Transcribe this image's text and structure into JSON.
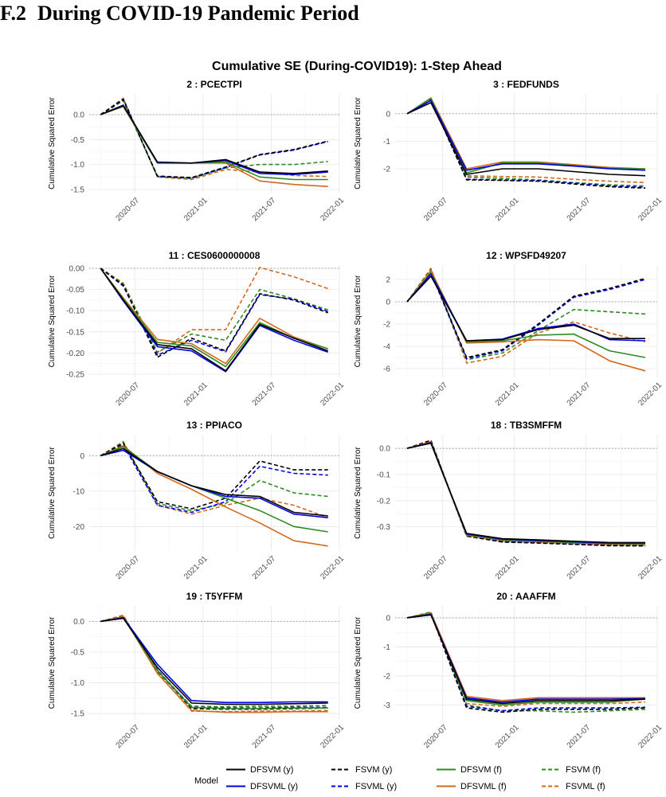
{
  "heading": {
    "number": "F.2",
    "text": "During COVID-19 Pandemic Period"
  },
  "chart_data": {
    "type": "line",
    "title": "Cumulative SE (During-COVID19): 1-Step Ahead",
    "ylabel": "Cumulative Squared Error",
    "x": [
      "2020-04",
      "2020-06",
      "2020-09",
      "2020-12",
      "2021-03",
      "2021-06",
      "2021-09",
      "2021-12"
    ],
    "x_tick_labels": [
      "2020-07",
      "2021-01",
      "2021-07",
      "2022-01"
    ],
    "x_tick_positions": [
      "2020-07",
      "2021-01",
      "2021-07",
      "2022-01"
    ],
    "reference_line": 0,
    "legend": {
      "title": "Model",
      "placement": "bottom",
      "entries": [
        {
          "name": "DFSVM (y)",
          "color": "#000000",
          "dash": "solid"
        },
        {
          "name": "DFSVML (y)",
          "color": "#0000e6",
          "dash": "solid"
        },
        {
          "name": "FSVM (y)",
          "color": "#000000",
          "dash": "dashed"
        },
        {
          "name": "FSVML (y)",
          "color": "#0000e6",
          "dash": "dashed"
        },
        {
          "name": "DFSVM (f)",
          "color": "#2e8b22",
          "dash": "solid"
        },
        {
          "name": "DFSVML (f)",
          "color": "#d2691e",
          "dash": "solid"
        },
        {
          "name": "FSVM (f)",
          "color": "#2e8b22",
          "dash": "dashed"
        },
        {
          "name": "FSVML (f)",
          "color": "#d2691e",
          "dash": "dashed"
        }
      ]
    },
    "panels": [
      {
        "title": "2 : PCECTPI",
        "ylim": [
          -1.5,
          0.35
        ],
        "yticks": [
          0,
          -0.5,
          -1.0,
          -1.5
        ],
        "ytick_labels": [
          "0.0",
          "-0.5",
          "-1.0",
          "-1.5"
        ],
        "series": {
          "DFSVM (y)": [
            0,
            0.18,
            -0.95,
            -0.97,
            -0.9,
            -1.15,
            -1.18,
            -1.13
          ],
          "DFSVML (y)": [
            0,
            0.19,
            -0.96,
            -0.97,
            -0.92,
            -1.18,
            -1.2,
            -1.15
          ],
          "FSVM (y)": [
            0,
            0.3,
            -1.23,
            -1.26,
            -1.05,
            -0.8,
            -0.7,
            -0.53
          ],
          "FSVML (y)": [
            0,
            0.31,
            -1.24,
            -1.27,
            -1.06,
            -0.81,
            -0.71,
            -0.54
          ],
          "DFSVM (f)": [
            0,
            0.17,
            -0.97,
            -0.97,
            -0.95,
            -1.25,
            -1.3,
            -1.3
          ],
          "DFSVML (f)": [
            0,
            0.16,
            -0.97,
            -0.97,
            -0.97,
            -1.33,
            -1.4,
            -1.44
          ],
          "FSVM (f)": [
            0,
            0.28,
            -1.24,
            -1.28,
            -1.07,
            -1.0,
            -1.0,
            -0.94
          ],
          "FSVML (f)": [
            0,
            0.33,
            -1.25,
            -1.3,
            -1.1,
            -1.15,
            -1.22,
            -1.24
          ]
        }
      },
      {
        "title": "3 : FEDFUNDS",
        "ylim": [
          -2.75,
          0.6
        ],
        "yticks": [
          0,
          -1,
          -2
        ],
        "ytick_labels": [
          "0",
          "-1",
          "-2"
        ],
        "series": {
          "DFSVM (y)": [
            0,
            0.4,
            -2.2,
            -2.0,
            -2.0,
            -2.1,
            -2.2,
            -2.25
          ],
          "DFSVML (y)": [
            0,
            0.48,
            -2.05,
            -1.82,
            -1.82,
            -1.9,
            -2.0,
            -2.05
          ],
          "FSVM (y)": [
            0,
            0.52,
            -2.4,
            -2.42,
            -2.45,
            -2.55,
            -2.65,
            -2.7
          ],
          "FSVML (y)": [
            0,
            0.5,
            -2.38,
            -2.4,
            -2.43,
            -2.52,
            -2.62,
            -2.67
          ],
          "DFSVM (f)": [
            0,
            0.55,
            -2.15,
            -1.78,
            -1.78,
            -1.88,
            -1.98,
            -2.0
          ],
          "DFSVML (f)": [
            0,
            0.57,
            -2.0,
            -1.75,
            -1.75,
            -1.85,
            -1.95,
            -2.0
          ],
          "FSVM (f)": [
            0,
            0.53,
            -2.3,
            -2.35,
            -2.4,
            -2.5,
            -2.58,
            -2.62
          ],
          "FSVML (f)": [
            0,
            0.56,
            -2.25,
            -2.28,
            -2.3,
            -2.38,
            -2.45,
            -2.5
          ]
        }
      },
      {
        "title": "11 : CES0600000008",
        "ylim": [
          -0.25,
          0.0
        ],
        "yticks": [
          0,
          -0.05,
          -0.1,
          -0.15,
          -0.2,
          -0.25
        ],
        "ytick_labels": [
          "0.00",
          "-0.05",
          "-0.10",
          "-0.15",
          "-0.20",
          "-0.25"
        ],
        "series": {
          "DFSVM (y)": [
            0,
            -0.075,
            -0.18,
            -0.19,
            -0.242,
            -0.132,
            -0.165,
            -0.195
          ],
          "DFSVML (y)": [
            0,
            -0.077,
            -0.185,
            -0.195,
            -0.244,
            -0.135,
            -0.17,
            -0.198
          ],
          "FSVM (y)": [
            0,
            -0.04,
            -0.21,
            -0.165,
            -0.195,
            -0.06,
            -0.075,
            -0.105
          ],
          "FSVML (y)": [
            0,
            -0.042,
            -0.205,
            -0.17,
            -0.197,
            -0.062,
            -0.073,
            -0.102
          ],
          "DFSVM (f)": [
            0,
            -0.072,
            -0.175,
            -0.183,
            -0.232,
            -0.128,
            -0.165,
            -0.19
          ],
          "DFSVML (f)": [
            0,
            -0.07,
            -0.168,
            -0.178,
            -0.225,
            -0.118,
            -0.162,
            -0.19
          ],
          "FSVM (f)": [
            0,
            -0.037,
            -0.198,
            -0.155,
            -0.17,
            -0.05,
            -0.072,
            -0.098
          ],
          "FSVML (f)": [
            0,
            -0.035,
            -0.2,
            -0.145,
            -0.145,
            0.002,
            -0.02,
            -0.048
          ]
        }
      },
      {
        "title": "12 : WPSFD49207",
        "ylim": [
          -6.5,
          3.0
        ],
        "yticks": [
          2,
          0,
          -2,
          -4,
          -6
        ],
        "ytick_labels": [
          "2",
          "0",
          "-2",
          "-4",
          "-6"
        ],
        "series": {
          "DFSVM (y)": [
            0,
            2.3,
            -3.5,
            -3.4,
            -2.5,
            -2.1,
            -3.3,
            -3.3
          ],
          "DFSVML (y)": [
            0,
            2.5,
            -3.5,
            -3.35,
            -2.4,
            -2.0,
            -3.4,
            -3.5
          ],
          "FSVM (y)": [
            0,
            2.7,
            -5.0,
            -4.3,
            -2.0,
            0.5,
            1.2,
            2.1
          ],
          "FSVML (y)": [
            0,
            2.6,
            -5.1,
            -4.4,
            -2.1,
            0.4,
            1.1,
            2.0
          ],
          "DFSVM (f)": [
            0,
            2.6,
            -3.6,
            -3.5,
            -3.0,
            -2.9,
            -4.4,
            -5.0
          ],
          "DFSVML (f)": [
            0,
            2.8,
            -3.7,
            -3.6,
            -3.4,
            -3.5,
            -5.3,
            -6.2
          ],
          "FSVM (f)": [
            0,
            2.9,
            -5.2,
            -4.6,
            -2.6,
            -0.7,
            -0.9,
            -1.1
          ],
          "FSVML (f)": [
            0,
            3.0,
            -5.5,
            -4.9,
            -2.8,
            -1.8,
            -2.8,
            -3.6
          ]
        }
      },
      {
        "title": "13 : PPIACO",
        "ylim": [
          -26,
          5
        ],
        "yticks": [
          0,
          -10,
          -20
        ],
        "ytick_labels": [
          "0",
          "-10",
          "-20"
        ],
        "series": {
          "DFSVM (y)": [
            0,
            2.0,
            -4.5,
            -8.5,
            -11.0,
            -11.5,
            -16.0,
            -17.0
          ],
          "DFSVML (y)": [
            0,
            1.5,
            -4.5,
            -8.5,
            -11.5,
            -12.0,
            -16.5,
            -17.5
          ],
          "FSVM (y)": [
            0,
            3.5,
            -13.0,
            -15.0,
            -12.0,
            -1.5,
            -4.0,
            -4.0
          ],
          "FSVML (y)": [
            0,
            3.0,
            -14.0,
            -16.0,
            -13.0,
            -3.0,
            -5.0,
            -5.5
          ],
          "DFSVM (f)": [
            0,
            2.5,
            -4.5,
            -8.5,
            -12.0,
            -15.5,
            -20.0,
            -21.5
          ],
          "DFSVML (f)": [
            0,
            2.8,
            -5.0,
            -9.5,
            -14.5,
            -19.0,
            -24.0,
            -25.5
          ],
          "FSVM (f)": [
            0,
            3.8,
            -13.5,
            -15.5,
            -13.5,
            -7.0,
            -10.5,
            -11.5
          ],
          "FSVML (f)": [
            0,
            4.0,
            -14.0,
            -16.5,
            -14.0,
            -12.0,
            -14.0,
            -17.5
          ]
        }
      },
      {
        "title": "18 : TB3SMFFM",
        "ylim": [
          -0.38,
          0.04
        ],
        "yticks": [
          0,
          -0.1,
          -0.2,
          -0.3
        ],
        "ytick_labels": [
          "0.0",
          "-0.1",
          "-0.2",
          "-0.3"
        ],
        "series": {
          "DFSVM (y)": [
            0,
            0.02,
            -0.325,
            -0.345,
            -0.35,
            -0.355,
            -0.36,
            -0.36
          ],
          "DFSVML (y)": [
            0,
            0.022,
            -0.327,
            -0.347,
            -0.352,
            -0.357,
            -0.362,
            -0.362
          ],
          "FSVM (y)": [
            0,
            0.03,
            -0.335,
            -0.358,
            -0.362,
            -0.367,
            -0.372,
            -0.373
          ],
          "FSVML (y)": [
            0,
            0.028,
            -0.333,
            -0.356,
            -0.36,
            -0.365,
            -0.37,
            -0.371
          ],
          "DFSVM (f)": [
            0,
            0.02,
            -0.33,
            -0.35,
            -0.355,
            -0.36,
            -0.364,
            -0.365
          ],
          "DFSVML (f)": [
            0,
            0.025,
            -0.332,
            -0.352,
            -0.357,
            -0.362,
            -0.366,
            -0.367
          ],
          "FSVM (f)": [
            0,
            0.028,
            -0.336,
            -0.357,
            -0.361,
            -0.366,
            -0.371,
            -0.372
          ],
          "FSVML (f)": [
            0,
            0.032,
            -0.334,
            -0.355,
            -0.359,
            -0.364,
            -0.369,
            -0.37
          ]
        }
      },
      {
        "title": "19 : T5YFFM",
        "ylim": [
          -1.55,
          0.2
        ],
        "yticks": [
          0,
          -0.5,
          -1.0,
          -1.5
        ],
        "ytick_labels": [
          "0.0",
          "-0.5",
          "-1.0",
          "-1.5"
        ],
        "series": {
          "DFSVM (y)": [
            0,
            0.05,
            -0.75,
            -1.33,
            -1.35,
            -1.35,
            -1.34,
            -1.33
          ],
          "DFSVML (y)": [
            0,
            0.06,
            -0.7,
            -1.29,
            -1.32,
            -1.32,
            -1.31,
            -1.31
          ],
          "FSVM (y)": [
            0,
            0.08,
            -0.8,
            -1.42,
            -1.43,
            -1.43,
            -1.42,
            -1.41
          ],
          "FSVML (y)": [
            0,
            0.07,
            -0.79,
            -1.4,
            -1.41,
            -1.41,
            -1.4,
            -1.4
          ],
          "DFSVM (f)": [
            0,
            0.06,
            -0.8,
            -1.4,
            -1.42,
            -1.42,
            -1.41,
            -1.41
          ],
          "DFSVML (f)": [
            0,
            0.08,
            -0.85,
            -1.45,
            -1.48,
            -1.48,
            -1.47,
            -1.47
          ],
          "FSVM (f)": [
            0,
            0.09,
            -0.82,
            -1.38,
            -1.39,
            -1.38,
            -1.38,
            -1.37
          ],
          "FSVML (f)": [
            0,
            0.1,
            -0.84,
            -1.46,
            -1.47,
            -1.46,
            -1.46,
            -1.45
          ]
        }
      },
      {
        "title": "20 : AAAFFM",
        "ylim": [
          -3.4,
          0.3
        ],
        "yticks": [
          0,
          -1,
          -2,
          -3
        ],
        "ytick_labels": [
          "0",
          "-1",
          "-2",
          "-3"
        ],
        "series": {
          "DFSVM (y)": [
            0,
            0.1,
            -2.8,
            -2.95,
            -2.85,
            -2.85,
            -2.85,
            -2.8
          ],
          "DFSVML (y)": [
            0,
            0.12,
            -2.75,
            -2.9,
            -2.8,
            -2.8,
            -2.8,
            -2.78
          ],
          "FSVM (y)": [
            0,
            0.15,
            -3.1,
            -3.25,
            -3.15,
            -3.15,
            -3.15,
            -3.1
          ],
          "FSVML (y)": [
            0,
            0.14,
            -3.05,
            -3.2,
            -3.1,
            -3.1,
            -3.1,
            -3.08
          ],
          "DFSVM (f)": [
            0,
            0.15,
            -2.85,
            -3.0,
            -2.9,
            -2.9,
            -2.9,
            -2.8
          ],
          "DFSVML (f)": [
            0,
            0.18,
            -2.7,
            -2.85,
            -2.75,
            -2.75,
            -2.75,
            -2.75
          ],
          "FSVM (f)": [
            0,
            0.2,
            -3.0,
            -3.2,
            -3.2,
            -3.25,
            -3.2,
            -3.15
          ],
          "FSVML (f)": [
            0,
            0.17,
            -2.95,
            -3.05,
            -2.95,
            -2.95,
            -2.95,
            -2.9
          ]
        }
      }
    ]
  }
}
